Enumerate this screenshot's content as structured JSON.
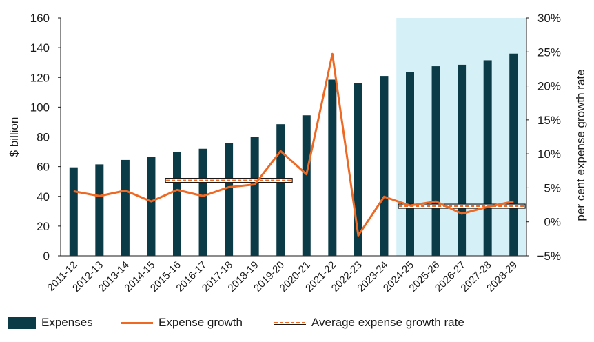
{
  "chart_data": {
    "type": "bar",
    "categories": [
      "2011-12",
      "2012-13",
      "2013-14",
      "2014-15",
      "2015-16",
      "2016-17",
      "2017-18",
      "2018-19",
      "2019-20",
      "2020-21",
      "2021-22",
      "2022-23",
      "2023-24",
      "2024-25",
      "2025-26",
      "2026-27",
      "2027-28",
      "2028-29"
    ],
    "series": [
      {
        "name": "Expenses",
        "type": "bar",
        "axis": "left",
        "values": [
          59.5,
          61.5,
          64.5,
          66.5,
          70,
          72,
          76,
          80,
          88.5,
          94.5,
          118.5,
          116,
          121,
          123.5,
          127.5,
          128.5,
          131.5,
          136
        ]
      },
      {
        "name": "Expense growth",
        "type": "line",
        "axis": "right",
        "values": [
          4.5,
          3.8,
          4.6,
          3.0,
          4.7,
          3.8,
          5.1,
          5.5,
          10.4,
          7.0,
          24.7,
          -2.0,
          3.7,
          2.4,
          3.0,
          1.2,
          2.2,
          3.0
        ]
      },
      {
        "name": "Average expense growth rate",
        "type": "dashed-line",
        "axis": "right",
        "segments": [
          {
            "from": "2015-16",
            "to": "2019-20",
            "value": 6.1
          },
          {
            "from": "2024-25",
            "to": "2028-29",
            "value": 2.3
          }
        ]
      }
    ],
    "highlight_range": [
      "2024-25",
      "2028-29"
    ],
    "ylabel": "$ billion",
    "y2label": "per cent expense growth rate",
    "ylim": [
      0,
      160
    ],
    "yticks": [
      "0",
      "20",
      "40",
      "60",
      "80",
      "100",
      "120",
      "140",
      "160"
    ],
    "y2lim": [
      -5,
      30
    ],
    "y2ticks": [
      "−5%",
      "0%",
      "5%",
      "10%",
      "15%",
      "20%",
      "25%",
      "30%"
    ],
    "legend_position": "bottom",
    "grid": false,
    "colors": {
      "bar": "#0b3b46",
      "line": "#ee6a24",
      "avg": "#ee6a24",
      "highlight": "#d5f0f6"
    }
  },
  "legend": {
    "expenses": "Expenses",
    "growth": "Expense growth",
    "average": "Average expense growth rate"
  }
}
